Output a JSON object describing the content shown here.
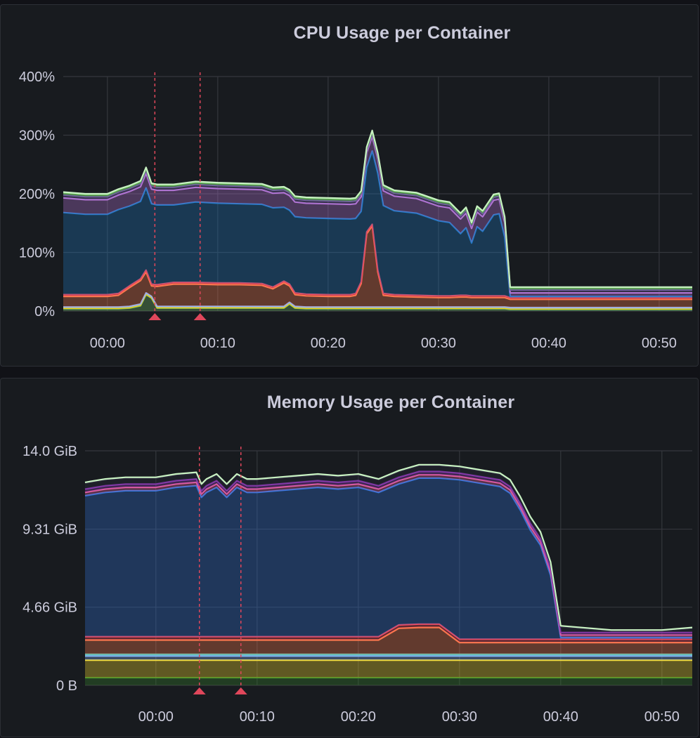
{
  "colors": {
    "background": "#181b1f",
    "grid": "#34373d",
    "text": "#ccccdc",
    "annotation": "#e0475b"
  },
  "chart_data": [
    {
      "type": "area",
      "stacked": true,
      "title": "CPU Usage per Container",
      "xlabel": "",
      "ylabel": "",
      "y_unit": "percent",
      "ylim": [
        0,
        400
      ],
      "y_ticks": [
        0,
        100,
        200,
        300,
        400
      ],
      "y_tick_labels": [
        "0%",
        "100%",
        "200%",
        "300%",
        "400%"
      ],
      "xlim": [
        -4,
        53
      ],
      "x_ticks": [
        0,
        10,
        20,
        30,
        40,
        50
      ],
      "x_tick_labels": [
        "00:00",
        "00:10",
        "00:20",
        "00:30",
        "00:40",
        "00:50"
      ],
      "grid": true,
      "legend": "none",
      "annotations_x": [
        4.3,
        8.4
      ],
      "x": [
        -4,
        -2,
        0,
        1,
        2,
        3,
        3.5,
        4,
        4.5,
        6,
        8,
        10,
        12,
        14,
        15,
        16,
        16.5,
        17,
        18,
        20,
        22,
        22.5,
        23,
        23.5,
        24,
        24.5,
        25,
        26,
        28,
        30,
        31,
        32,
        32.5,
        33,
        33.5,
        34,
        35,
        35.5,
        36,
        36.5,
        38,
        40,
        45,
        50,
        52,
        53
      ],
      "series": [
        {
          "color": "#73bf69",
          "values": [
            4,
            4,
            4,
            4,
            5,
            9,
            28,
            22,
            5,
            5,
            5,
            5,
            5,
            5,
            5,
            5,
            12,
            5,
            4,
            4,
            4,
            4,
            4,
            4,
            4,
            4,
            4,
            4,
            4,
            4,
            4,
            4,
            4,
            4,
            4,
            4,
            4,
            4,
            4,
            3,
            3,
            3,
            3,
            3,
            3,
            3
          ]
        },
        {
          "color": "#f2cc0c",
          "values": [
            1,
            1,
            1,
            1,
            1,
            1,
            1,
            1,
            1,
            1,
            1,
            1,
            1,
            1,
            1,
            1,
            1,
            1,
            1,
            1,
            1,
            1,
            1,
            1,
            1,
            1,
            1,
            1,
            1,
            1,
            1,
            1,
            1,
            1,
            1,
            1,
            1,
            1,
            1,
            1,
            1,
            1,
            1,
            1,
            1,
            1
          ]
        },
        {
          "color": "#8ab8ff",
          "values": [
            2,
            2,
            2,
            2,
            2,
            2,
            2,
            2,
            2,
            2,
            2,
            2,
            2,
            2,
            2,
            2,
            2,
            2,
            2,
            2,
            2,
            2,
            2,
            2,
            2,
            2,
            2,
            2,
            2,
            2,
            2,
            2,
            2,
            2,
            2,
            2,
            2,
            2,
            2,
            2,
            2,
            2,
            2,
            2,
            2,
            2
          ]
        },
        {
          "color": "#ff7c4d",
          "values": [
            18,
            18,
            18,
            20,
            32,
            40,
            36,
            18,
            34,
            38,
            38,
            37,
            37,
            36,
            30,
            40,
            28,
            20,
            19,
            18,
            18,
            20,
            40,
            125,
            138,
            60,
            20,
            18,
            17,
            16,
            16,
            17,
            17,
            16,
            16,
            16,
            16,
            16,
            16,
            14,
            14,
            14,
            14,
            14,
            14,
            14
          ]
        },
        {
          "color": "#f2495c",
          "values": [
            3,
            3,
            3,
            3,
            3,
            3,
            3,
            3,
            3,
            3,
            3,
            3,
            3,
            3,
            3,
            3,
            3,
            3,
            3,
            3,
            3,
            3,
            3,
            3,
            3,
            3,
            3,
            3,
            3,
            3,
            3,
            3,
            3,
            3,
            3,
            3,
            3,
            3,
            3,
            3,
            3,
            3,
            3,
            3,
            3,
            3
          ]
        },
        {
          "color": "#1f78c1",
          "values": [
            140,
            137,
            137,
            143,
            136,
            132,
            140,
            137,
            136,
            132,
            137,
            136,
            135,
            135,
            135,
            126,
            126,
            130,
            130,
            130,
            129,
            128,
            120,
            110,
            125,
            165,
            150,
            143,
            140,
            128,
            125,
            105,
            115,
            90,
            118,
            110,
            138,
            140,
            100,
            2,
            2,
            2,
            2,
            2,
            2,
            2
          ]
        },
        {
          "color": "#b877d9",
          "values": [
            25,
            25,
            25,
            25,
            25,
            25,
            25,
            25,
            25,
            25,
            25,
            25,
            25,
            25,
            25,
            25,
            25,
            25,
            25,
            25,
            25,
            25,
            25,
            25,
            25,
            25,
            25,
            25,
            25,
            25,
            25,
            25,
            25,
            25,
            25,
            25,
            25,
            25,
            25,
            6,
            6,
            6,
            6,
            6,
            6,
            6
          ]
        },
        {
          "color": "#705da0",
          "values": [
            5,
            5,
            5,
            5,
            5,
            5,
            5,
            5,
            5,
            5,
            5,
            5,
            5,
            5,
            5,
            5,
            5,
            5,
            5,
            5,
            5,
            5,
            5,
            5,
            5,
            5,
            5,
            5,
            5,
            5,
            5,
            5,
            5,
            5,
            5,
            5,
            5,
            5,
            5,
            5,
            5,
            5,
            5,
            5,
            5,
            5
          ]
        },
        {
          "color": "#56a64b",
          "values": [
            3,
            3,
            3,
            3,
            3,
            3,
            3,
            3,
            3,
            3,
            3,
            3,
            3,
            3,
            3,
            3,
            3,
            3,
            3,
            3,
            3,
            3,
            3,
            3,
            3,
            3,
            3,
            3,
            3,
            3,
            3,
            3,
            3,
            3,
            3,
            3,
            3,
            3,
            3,
            3,
            3,
            3,
            3,
            3,
            3,
            3
          ]
        },
        {
          "color": "#c8f2c2",
          "values": [
            2,
            2,
            2,
            2,
            2,
            2,
            2,
            2,
            2,
            2,
            2,
            2,
            2,
            2,
            2,
            2,
            2,
            2,
            2,
            2,
            2,
            2,
            2,
            2,
            2,
            2,
            2,
            2,
            2,
            2,
            2,
            2,
            2,
            2,
            2,
            2,
            2,
            2,
            2,
            2,
            2,
            2,
            2,
            2,
            2,
            2
          ]
        }
      ]
    },
    {
      "type": "area",
      "stacked": true,
      "title": "Memory Usage per Container",
      "xlabel": "",
      "ylabel": "",
      "y_unit": "GiB",
      "ylim": [
        0,
        13.98
      ],
      "y_ticks": [
        0,
        4.66,
        9.31,
        13.98
      ],
      "y_tick_labels": [
        "0 B",
        "4.66 GiB",
        "9.31 GiB",
        "14.0 GiB"
      ],
      "xlim": [
        -7,
        53
      ],
      "x_ticks": [
        0,
        10,
        20,
        30,
        40,
        50
      ],
      "x_tick_labels": [
        "00:00",
        "00:10",
        "00:20",
        "00:30",
        "00:40",
        "00:50"
      ],
      "grid": true,
      "legend": "none",
      "annotations_x": [
        4.3,
        8.4
      ],
      "x": [
        -7,
        -5,
        -3,
        0,
        2,
        4,
        4.5,
        5,
        6,
        7,
        8,
        9,
        10,
        12,
        14,
        16,
        18,
        20,
        22,
        24,
        26,
        28,
        30,
        32,
        34,
        35,
        36,
        37,
        38,
        39,
        40,
        45,
        50,
        53
      ],
      "series": [
        {
          "color": "#37872d",
          "values": [
            0.45,
            0.45,
            0.45,
            0.45,
            0.45,
            0.45,
            0.45,
            0.45,
            0.45,
            0.45,
            0.45,
            0.45,
            0.45,
            0.45,
            0.45,
            0.45,
            0.45,
            0.45,
            0.45,
            0.45,
            0.45,
            0.45,
            0.45,
            0.45,
            0.45,
            0.45,
            0.45,
            0.45,
            0.45,
            0.45,
            0.45,
            0.45,
            0.45,
            0.45
          ]
        },
        {
          "color": "#fade2a",
          "values": [
            1.05,
            1.05,
            1.05,
            1.05,
            1.05,
            1.05,
            1.05,
            1.05,
            1.05,
            1.05,
            1.05,
            1.05,
            1.05,
            1.05,
            1.05,
            1.05,
            1.05,
            1.05,
            1.05,
            1.05,
            1.05,
            1.05,
            1.05,
            1.05,
            1.05,
            1.05,
            1.05,
            1.05,
            1.05,
            1.05,
            1.05,
            1.05,
            1.05,
            1.05
          ]
        },
        {
          "color": "#8ab8ff",
          "values": [
            0.25,
            0.25,
            0.25,
            0.25,
            0.25,
            0.25,
            0.25,
            0.25,
            0.25,
            0.25,
            0.25,
            0.25,
            0.25,
            0.25,
            0.25,
            0.25,
            0.25,
            0.25,
            0.25,
            0.25,
            0.25,
            0.25,
            0.25,
            0.25,
            0.25,
            0.25,
            0.25,
            0.25,
            0.25,
            0.25,
            0.25,
            0.25,
            0.25,
            0.25
          ]
        },
        {
          "color": "#5ecec6",
          "values": [
            0.1,
            0.1,
            0.1,
            0.1,
            0.1,
            0.1,
            0.1,
            0.1,
            0.1,
            0.1,
            0.1,
            0.1,
            0.1,
            0.1,
            0.1,
            0.1,
            0.1,
            0.1,
            0.1,
            0.1,
            0.1,
            0.1,
            0.1,
            0.1,
            0.1,
            0.1,
            0.1,
            0.1,
            0.1,
            0.1,
            0.1,
            0.1,
            0.1,
            0.1
          ]
        },
        {
          "color": "#ff7c4d",
          "values": [
            0.85,
            0.85,
            0.85,
            0.85,
            0.85,
            0.85,
            0.85,
            0.85,
            0.85,
            0.85,
            0.85,
            0.85,
            0.85,
            0.85,
            0.85,
            0.85,
            0.85,
            0.85,
            0.85,
            1.55,
            1.6,
            1.6,
            0.7,
            0.7,
            0.7,
            0.7,
            0.7,
            0.7,
            0.7,
            0.7,
            0.7,
            0.7,
            0.7,
            0.7
          ]
        },
        {
          "color": "#f2495c",
          "values": [
            0.2,
            0.2,
            0.2,
            0.2,
            0.2,
            0.2,
            0.2,
            0.2,
            0.2,
            0.2,
            0.2,
            0.2,
            0.2,
            0.2,
            0.2,
            0.2,
            0.2,
            0.2,
            0.2,
            0.2,
            0.2,
            0.2,
            0.2,
            0.2,
            0.2,
            0.2,
            0.2,
            0.2,
            0.2,
            0.2,
            0.2,
            0.2,
            0.2,
            0.2
          ]
        },
        {
          "color": "#3274d9",
          "values": [
            8.4,
            8.6,
            8.7,
            8.7,
            8.9,
            9.0,
            8.3,
            8.6,
            8.9,
            8.3,
            8.9,
            8.6,
            8.6,
            8.7,
            8.8,
            8.9,
            8.8,
            8.9,
            8.6,
            8.4,
            8.7,
            8.7,
            9.5,
            9.3,
            9.1,
            8.7,
            7.7,
            6.5,
            5.6,
            3.8,
            0.1,
            0.1,
            0.1,
            0.1
          ]
        },
        {
          "color": "#e05f9d",
          "values": [
            0.2,
            0.2,
            0.2,
            0.2,
            0.2,
            0.2,
            0.2,
            0.2,
            0.2,
            0.2,
            0.2,
            0.2,
            0.2,
            0.2,
            0.2,
            0.2,
            0.2,
            0.2,
            0.2,
            0.2,
            0.2,
            0.2,
            0.2,
            0.2,
            0.2,
            0.2,
            0.2,
            0.2,
            0.2,
            0.2,
            0.15,
            0.15,
            0.15,
            0.15
          ]
        },
        {
          "color": "#8f3bb8",
          "values": [
            0.2,
            0.2,
            0.2,
            0.2,
            0.2,
            0.2,
            0.2,
            0.2,
            0.2,
            0.2,
            0.2,
            0.2,
            0.2,
            0.2,
            0.2,
            0.2,
            0.2,
            0.2,
            0.2,
            0.2,
            0.2,
            0.2,
            0.2,
            0.2,
            0.2,
            0.2,
            0.2,
            0.2,
            0.2,
            0.2,
            0.15,
            0.15,
            0.15,
            0.15
          ]
        },
        {
          "color": "#2d2b3d",
          "values": [
            0.35,
            0.35,
            0.35,
            0.35,
            0.35,
            0.35,
            0.35,
            0.35,
            0.35,
            0.35,
            0.35,
            0.35,
            0.35,
            0.35,
            0.35,
            0.35,
            0.35,
            0.35,
            0.35,
            0.35,
            0.35,
            0.35,
            0.35,
            0.35,
            0.35,
            0.35,
            0.35,
            0.35,
            0.35,
            0.35,
            0.35,
            0.1,
            0.1,
            0.25
          ]
        },
        {
          "color": "#c8f2c2",
          "values": [
            0.05,
            0.05,
            0.05,
            0.05,
            0.05,
            0.05,
            0.05,
            0.05,
            0.05,
            0.05,
            0.05,
            0.05,
            0.05,
            0.05,
            0.05,
            0.05,
            0.05,
            0.05,
            0.05,
            0.05,
            0.05,
            0.05,
            0.05,
            0.05,
            0.05,
            0.05,
            0.05,
            0.05,
            0.05,
            0.05,
            0.05,
            0.05,
            0.05,
            0.05
          ]
        }
      ]
    }
  ]
}
